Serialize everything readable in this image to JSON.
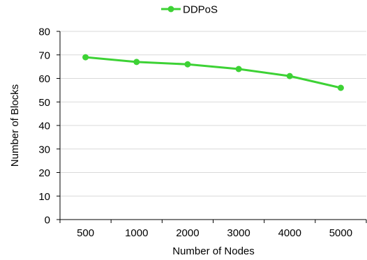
{
  "chart_data": {
    "type": "line",
    "categories": [
      "500",
      "1000",
      "2000",
      "3000",
      "4000",
      "5000"
    ],
    "series": [
      {
        "name": "DDPoS",
        "values": [
          69,
          67,
          66,
          64,
          61,
          56
        ],
        "color": "#3dd235"
      }
    ],
    "xlabel": "Number of Nodes",
    "ylabel": "Number of Blocks",
    "ylim": [
      0,
      80
    ],
    "yticks": [
      0,
      10,
      20,
      30,
      40,
      50,
      60,
      70,
      80
    ],
    "grid": "horizontal",
    "legend_position": "top-center"
  }
}
